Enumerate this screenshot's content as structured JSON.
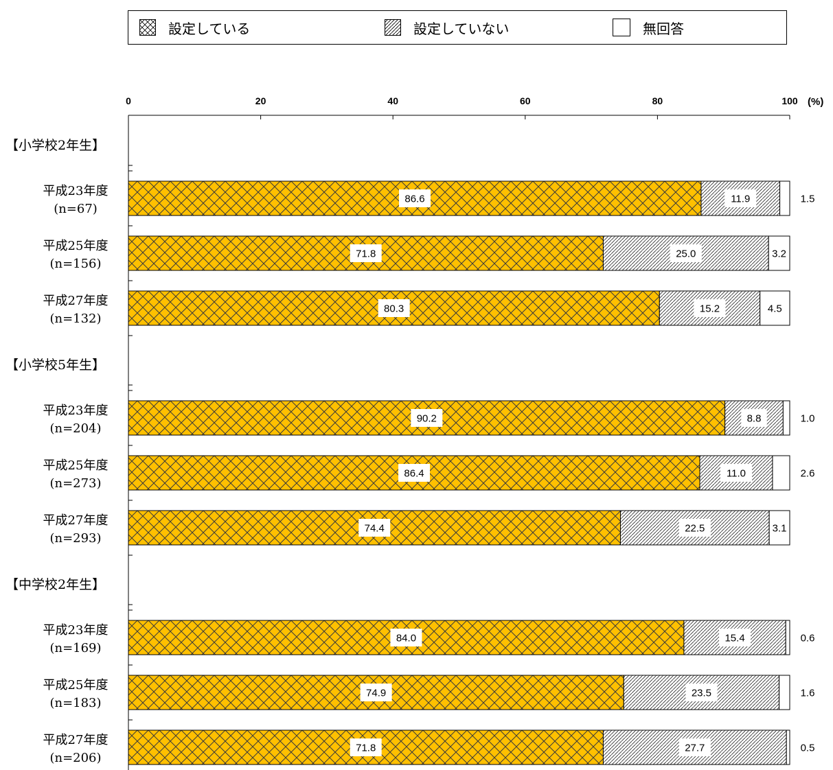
{
  "chart_data": {
    "type": "bar",
    "orientation": "horizontal",
    "stacked": true,
    "unit": "(%)",
    "xlim": [
      0,
      100
    ],
    "xticks": [
      0,
      20,
      40,
      60,
      80,
      100
    ],
    "legend_position": "top",
    "series": [
      {
        "name": "設定している",
        "color": "#FFC000",
        "pattern": "crosshatch",
        "values": [
          86.6,
          71.8,
          80.3,
          90.2,
          86.4,
          74.4,
          84.0,
          74.9,
          71.8
        ]
      },
      {
        "name": "設定していない",
        "color": "#FFFFFF",
        "pattern": "diagonal",
        "values": [
          11.9,
          25.0,
          15.2,
          8.8,
          11.0,
          22.5,
          15.4,
          23.5,
          27.7
        ]
      },
      {
        "name": "無回答",
        "color": "#FFFFFF",
        "pattern": "none",
        "values": [
          1.5,
          3.2,
          4.5,
          1.0,
          2.6,
          3.1,
          0.6,
          1.6,
          0.5
        ]
      }
    ],
    "groups": [
      {
        "label": "【小学校2年生】",
        "rows": [
          {
            "year": "平成23年度",
            "n": "(n=67)"
          },
          {
            "year": "平成25年度",
            "n": "(n=156)"
          },
          {
            "year": "平成27年度",
            "n": "(n=132)"
          }
        ]
      },
      {
        "label": "【小学校5年生】",
        "rows": [
          {
            "year": "平成23年度",
            "n": "(n=204)"
          },
          {
            "year": "平成25年度",
            "n": "(n=273)"
          },
          {
            "year": "平成27年度",
            "n": "(n=293)"
          }
        ]
      },
      {
        "label": "【中学校2年生】",
        "rows": [
          {
            "year": "平成23年度",
            "n": "(n=169)"
          },
          {
            "year": "平成25年度",
            "n": "(n=183)"
          },
          {
            "year": "平成27年度",
            "n": "(n=206)"
          }
        ]
      }
    ],
    "value_labels": [
      [
        "86.6",
        "11.9",
        "1.5"
      ],
      [
        "71.8",
        "25.0",
        "3.2"
      ],
      [
        "80.3",
        "15.2",
        "4.5"
      ],
      [
        "90.2",
        "8.8",
        "1.0"
      ],
      [
        "86.4",
        "11.0",
        "2.6"
      ],
      [
        "74.4",
        "22.5",
        "3.1"
      ],
      [
        "84.0",
        "15.4",
        "0.6"
      ],
      [
        "74.9",
        "23.5",
        "1.6"
      ],
      [
        "71.8",
        "27.7",
        "0.5"
      ]
    ],
    "outside_label_rows": [
      0,
      3,
      4,
      6,
      7,
      8
    ]
  }
}
